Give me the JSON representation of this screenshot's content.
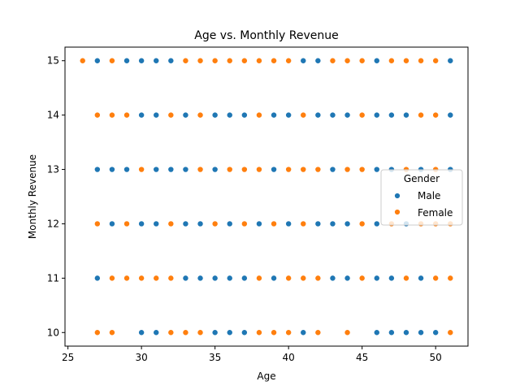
{
  "chart_data": {
    "type": "scatter",
    "title": "Age vs. Monthly Revenue",
    "xlabel": "Age",
    "ylabel": "Monthly Revenue",
    "xlim": [
      24.8,
      52.2
    ],
    "ylim": [
      9.75,
      15.25
    ],
    "xticks": [
      "25",
      "30",
      "35",
      "40",
      "45",
      "50"
    ],
    "yticks": [
      "10",
      "11",
      "12",
      "13",
      "14",
      "15"
    ],
    "grid": false,
    "legend": {
      "title": "Gender",
      "position": "center-right"
    },
    "colors": {
      "Male": "#1f77b4",
      "Female": "#ff7f0e"
    },
    "series": [
      {
        "name": "Male",
        "points": [
          [
            27,
            15
          ],
          [
            28,
            15
          ],
          [
            29,
            15
          ],
          [
            30,
            15
          ],
          [
            31,
            15
          ],
          [
            32,
            15
          ],
          [
            41,
            15
          ],
          [
            42,
            15
          ],
          [
            46,
            15
          ],
          [
            51,
            15
          ],
          [
            30,
            14
          ],
          [
            31,
            14
          ],
          [
            33,
            14
          ],
          [
            35,
            14
          ],
          [
            36,
            14
          ],
          [
            37,
            14
          ],
          [
            39,
            14
          ],
          [
            40,
            14
          ],
          [
            42,
            14
          ],
          [
            43,
            14
          ],
          [
            44,
            14
          ],
          [
            46,
            14
          ],
          [
            47,
            14
          ],
          [
            48,
            14
          ],
          [
            51,
            14
          ],
          [
            27,
            13
          ],
          [
            28,
            13
          ],
          [
            29,
            13
          ],
          [
            31,
            13
          ],
          [
            32,
            13
          ],
          [
            33,
            13
          ],
          [
            35,
            13
          ],
          [
            39,
            13
          ],
          [
            43,
            13
          ],
          [
            46,
            13
          ],
          [
            47,
            13
          ],
          [
            49,
            13
          ],
          [
            51,
            13
          ],
          [
            28,
            12
          ],
          [
            30,
            12
          ],
          [
            31,
            12
          ],
          [
            33,
            12
          ],
          [
            34,
            12
          ],
          [
            36,
            12
          ],
          [
            38,
            12
          ],
          [
            40,
            12
          ],
          [
            42,
            12
          ],
          [
            43,
            12
          ],
          [
            44,
            12
          ],
          [
            46,
            12
          ],
          [
            48,
            12
          ],
          [
            27,
            11
          ],
          [
            33,
            11
          ],
          [
            34,
            11
          ],
          [
            35,
            11
          ],
          [
            36,
            11
          ],
          [
            37,
            11
          ],
          [
            39,
            11
          ],
          [
            43,
            11
          ],
          [
            44,
            11
          ],
          [
            46,
            11
          ],
          [
            47,
            11
          ],
          [
            49,
            11
          ],
          [
            30,
            10
          ],
          [
            31,
            10
          ],
          [
            35,
            10
          ],
          [
            36,
            10
          ],
          [
            37,
            10
          ],
          [
            41,
            10
          ],
          [
            46,
            10
          ],
          [
            47,
            10
          ],
          [
            48,
            10
          ],
          [
            49,
            10
          ],
          [
            50,
            10
          ],
          [
            51,
            10
          ]
        ]
      },
      {
        "name": "Female",
        "points": [
          [
            26,
            15
          ],
          [
            28,
            15
          ],
          [
            33,
            15
          ],
          [
            34,
            15
          ],
          [
            35,
            15
          ],
          [
            36,
            15
          ],
          [
            37,
            15
          ],
          [
            38,
            15
          ],
          [
            39,
            15
          ],
          [
            40,
            15
          ],
          [
            43,
            15
          ],
          [
            44,
            15
          ],
          [
            45,
            15
          ],
          [
            47,
            15
          ],
          [
            48,
            15
          ],
          [
            49,
            15
          ],
          [
            50,
            15
          ],
          [
            27,
            14
          ],
          [
            28,
            14
          ],
          [
            29,
            14
          ],
          [
            32,
            14
          ],
          [
            34,
            14
          ],
          [
            38,
            14
          ],
          [
            41,
            14
          ],
          [
            45,
            14
          ],
          [
            49,
            14
          ],
          [
            50,
            14
          ],
          [
            30,
            13
          ],
          [
            34,
            13
          ],
          [
            36,
            13
          ],
          [
            37,
            13
          ],
          [
            38,
            13
          ],
          [
            40,
            13
          ],
          [
            41,
            13
          ],
          [
            42,
            13
          ],
          [
            44,
            13
          ],
          [
            45,
            13
          ],
          [
            48,
            13
          ],
          [
            50,
            13
          ],
          [
            27,
            12
          ],
          [
            29,
            12
          ],
          [
            32,
            12
          ],
          [
            35,
            12
          ],
          [
            37,
            12
          ],
          [
            39,
            12
          ],
          [
            41,
            12
          ],
          [
            45,
            12
          ],
          [
            47,
            12
          ],
          [
            49,
            12
          ],
          [
            50,
            12
          ],
          [
            51,
            12
          ],
          [
            28,
            11
          ],
          [
            29,
            11
          ],
          [
            30,
            11
          ],
          [
            31,
            11
          ],
          [
            32,
            11
          ],
          [
            38,
            11
          ],
          [
            40,
            11
          ],
          [
            41,
            11
          ],
          [
            42,
            11
          ],
          [
            45,
            11
          ],
          [
            48,
            11
          ],
          [
            50,
            11
          ],
          [
            51,
            11
          ],
          [
            27,
            10
          ],
          [
            28,
            10
          ],
          [
            32,
            10
          ],
          [
            33,
            10
          ],
          [
            34,
            10
          ],
          [
            38,
            10
          ],
          [
            39,
            10
          ],
          [
            40,
            10
          ],
          [
            42,
            10
          ],
          [
            44,
            10
          ],
          [
            51,
            10
          ]
        ]
      }
    ]
  }
}
